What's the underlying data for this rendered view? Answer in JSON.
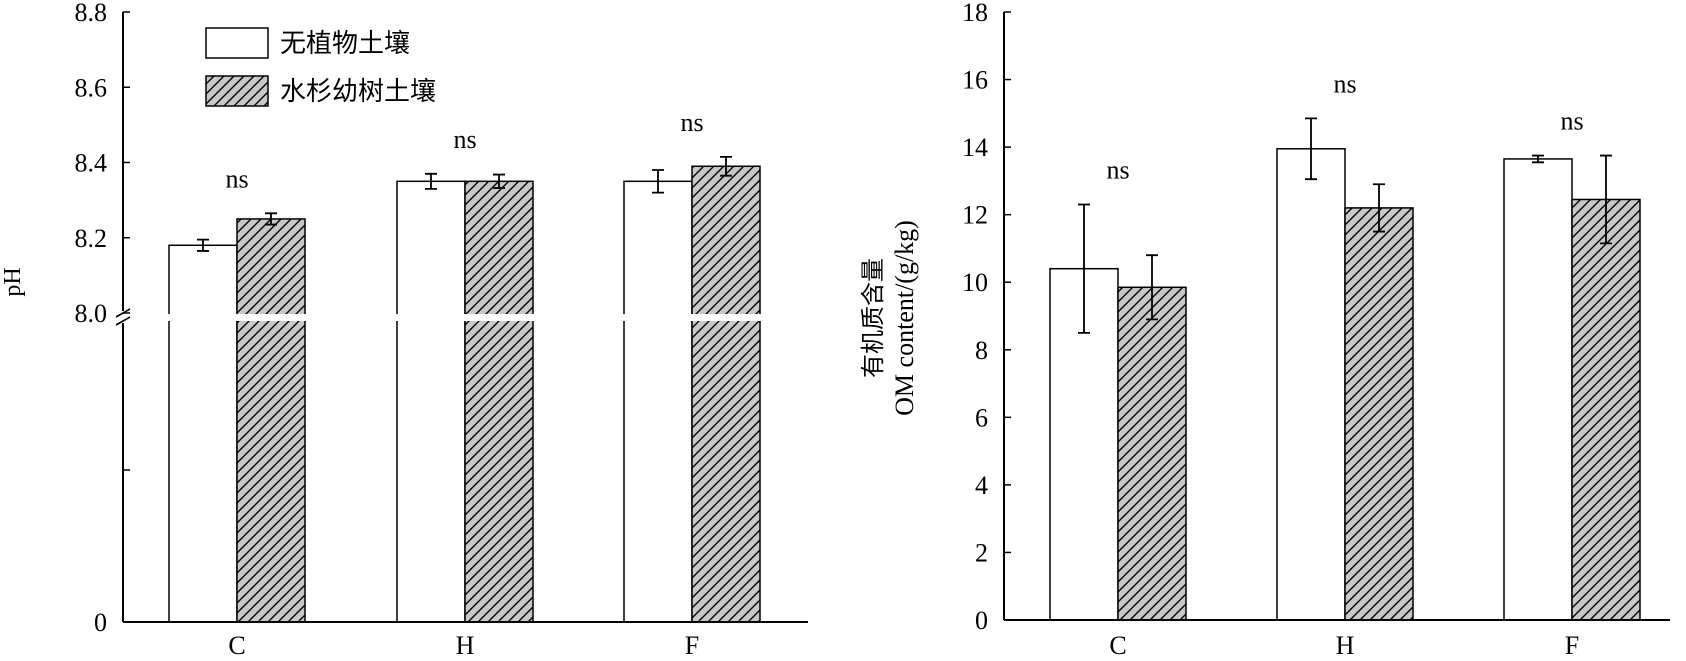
{
  "chart_data": [
    {
      "type": "bar",
      "categories": [
        "C",
        "H",
        "F"
      ],
      "series": [
        {
          "name": "无植物土壤",
          "values": [
            8.18,
            8.35,
            8.35
          ],
          "errors": [
            0.015,
            0.02,
            0.03
          ]
        },
        {
          "name": "水杉幼树土壤",
          "values": [
            8.25,
            8.35,
            8.39
          ],
          "errors": [
            0.015,
            0.018,
            0.025
          ]
        }
      ],
      "annotations": [
        "ns",
        "ns",
        "ns"
      ],
      "ylabel": "pH",
      "ylim": [
        8.0,
        8.8
      ],
      "broken_axis": true,
      "yticks_upper": [
        "8.8",
        "8.6",
        "8.4",
        "8.2",
        "8.0"
      ],
      "yticks_lower": [
        "0"
      ],
      "legend": "top-left"
    },
    {
      "type": "bar",
      "categories": [
        "C",
        "H",
        "F"
      ],
      "series": [
        {
          "name": "无植物土壤",
          "values": [
            10.4,
            13.95,
            13.65
          ],
          "errors": [
            1.9,
            0.9,
            0.1
          ]
        },
        {
          "name": "水杉幼树土壤",
          "values": [
            9.85,
            12.2,
            12.45
          ],
          "errors": [
            0.95,
            0.7,
            1.3
          ]
        }
      ],
      "annotations": [
        "ns",
        "ns",
        "ns"
      ],
      "ylabel_cn": "有机质含量",
      "ylabel": "OM content/(g/kg)",
      "ylim": [
        0,
        18
      ],
      "yticks": [
        "18",
        "16",
        "14",
        "12",
        "10",
        "8",
        "6",
        "4",
        "2",
        "0"
      ]
    }
  ],
  "colors": {
    "series1_fill": "#ffffff",
    "series2_fill": "#c8c8c8",
    "hatch": "#000000"
  }
}
